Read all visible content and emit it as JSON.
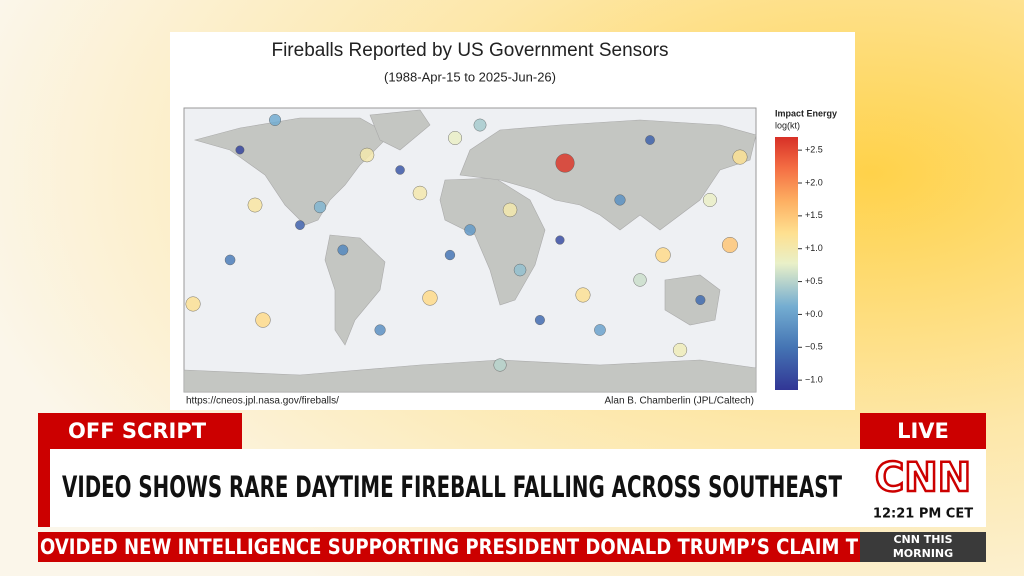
{
  "broadcast": {
    "banner_label": "OFF SCRIPT",
    "live": "LIVE",
    "headline": "VIDEO SHOWS RARE DAYTIME FIREBALL FALLING ACROSS SOUTHEAST",
    "logo": "CNN",
    "time": "12:21 PM CET",
    "ticker": "OVIDED NEW INTELLIGENCE SUPPORTING PRESIDENT DONALD TRUMP’S CLAIM T",
    "show": [
      "CNN THIS",
      "MORNING"
    ]
  },
  "chart_data": {
    "type": "scatter",
    "title": "Fireballs Reported by US Government Sensors",
    "subtitle": "(1988-Apr-15 to 2025-Jun-26)",
    "source": "https://cneos.jpl.nasa.gov/fireballs/",
    "credit": "Alan B. Chamberlin (JPL/Caltech)",
    "colorbar": {
      "title": "Impact Energy",
      "unit": "log(kt)",
      "lim": [
        -1.15,
        2.7
      ],
      "ticks": [
        {
          "value": 2.5,
          "label": "+2.5"
        },
        {
          "value": 2.0,
          "label": "+2.0"
        },
        {
          "value": 1.5,
          "label": "+1.5"
        },
        {
          "value": 1.0,
          "label": "+1.0"
        },
        {
          "value": 0.5,
          "label": "+0.5"
        },
        {
          "value": 0,
          "label": "+0.0"
        },
        {
          "value": -0.5,
          "label": "−0.5"
        },
        {
          "value": -1.0,
          "label": "−1.0"
        }
      ]
    },
    "xlim": [
      -180,
      180
    ],
    "ylim": [
      -90,
      90
    ],
    "x": [
      59.8,
      163.6,
      121.5,
      -130.3,
      -174.3,
      -25.2,
      71.1,
      -135.3,
      -31.5,
      25.2,
      169.9,
      -64.8,
      -9.4,
      6.3,
      -94.4,
      -80,
      -107,
      -44,
      -12.6,
      31.5,
      56.6,
      94.4,
      145,
      132.2,
      18.9,
      -151,
      -144.8,
      113.3,
      -56.6,
      81.8,
      151,
      -122.7,
      44,
      0,
      107
    ],
    "y": [
      55.1,
      3.2,
      -3.2,
      -44.4,
      -34.2,
      -30.4,
      -28.5,
      28.5,
      36.1,
      25.4,
      58.9,
      60.2,
      71,
      79.2,
      27.2,
      0,
      15.8,
      50.7,
      -3.2,
      -12.7,
      6.3,
      31.7,
      -31.7,
      -63.4,
      -72.9,
      -6.3,
      63.4,
      69.7,
      -50.7,
      -50.7,
      31.7,
      82.4,
      -44.4,
      12.7,
      -19
    ],
    "values": [
      2.64,
      1.5,
      1.3,
      1.3,
      1.2,
      1.3,
      1.2,
      1.1,
      1.0,
      1.0,
      1.2,
      1.0,
      0.8,
      0.4,
      0.2,
      -0.3,
      -0.7,
      -0.8,
      -0.5,
      0.3,
      -0.9,
      -0.2,
      -0.6,
      0.9,
      0.5,
      -0.4,
      -1.0,
      -0.7,
      -0.2,
      0.0,
      0.8,
      0.1,
      -0.6,
      -0.1,
      0.6
    ]
  }
}
